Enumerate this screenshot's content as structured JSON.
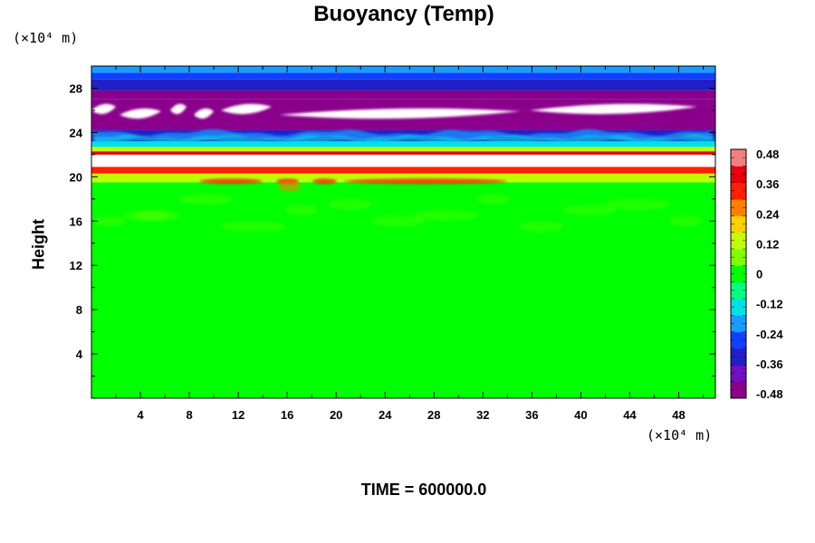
{
  "chart_data": {
    "type": "heatmap",
    "title": "Buoyancy (Temp)",
    "ylabel": "Height",
    "xunit": "(×10⁴ m)",
    "yunit": "(×10⁴ m)",
    "footer": "TIME = 600000.0",
    "xlim": [
      0,
      51
    ],
    "ylim": [
      0,
      30
    ],
    "xticks": [
      "4",
      "8",
      "12",
      "16",
      "20",
      "24",
      "28",
      "32",
      "36",
      "40",
      "44",
      "48"
    ],
    "yticks": [
      "4",
      "8",
      "12",
      "16",
      "20",
      "24",
      "28"
    ],
    "colorbar": {
      "ticks": [
        "0.48",
        "0.36",
        "0.24",
        "0.12",
        "0",
        "-0.12",
        "-0.24",
        "-0.36",
        "-0.48"
      ],
      "range": [
        -0.48,
        0.48
      ],
      "colors": [
        "#8b008b",
        "#7010c0",
        "#2020c8",
        "#1040ff",
        "#1a9cff",
        "#00e0e8",
        "#00ff80",
        "#00ff00",
        "#7fff00",
        "#c0ff00",
        "#ffd000",
        "#ff8000",
        "#ff2000",
        "#e8000a",
        "#f08080"
      ]
    },
    "layers": [
      {
        "from": 0,
        "to": 19.5,
        "value": 0.0
      },
      {
        "from": 19.5,
        "to": 20.3,
        "value": 0.1
      },
      {
        "from": 20.3,
        "to": 20.9,
        "value": 0.35
      },
      {
        "from": 20.9,
        "to": 22.0,
        "value": "white"
      },
      {
        "from": 22.0,
        "to": 22.3,
        "value": 0.4
      },
      {
        "from": 22.3,
        "to": 22.7,
        "value": 0.12
      },
      {
        "from": 22.7,
        "to": 23.2,
        "value": -0.15
      },
      {
        "from": 23.2,
        "to": 24.2,
        "value": -0.35
      },
      {
        "from": 24.2,
        "to": 27.0,
        "value": -0.45
      },
      {
        "from": 27.0,
        "to": 27.8,
        "value": -0.42
      },
      {
        "from": 27.8,
        "to": 28.8,
        "value": -0.35
      },
      {
        "from": 28.8,
        "to": 29.4,
        "value": -0.28
      },
      {
        "from": 29.4,
        "to": 30.0,
        "value": -0.2
      }
    ]
  }
}
